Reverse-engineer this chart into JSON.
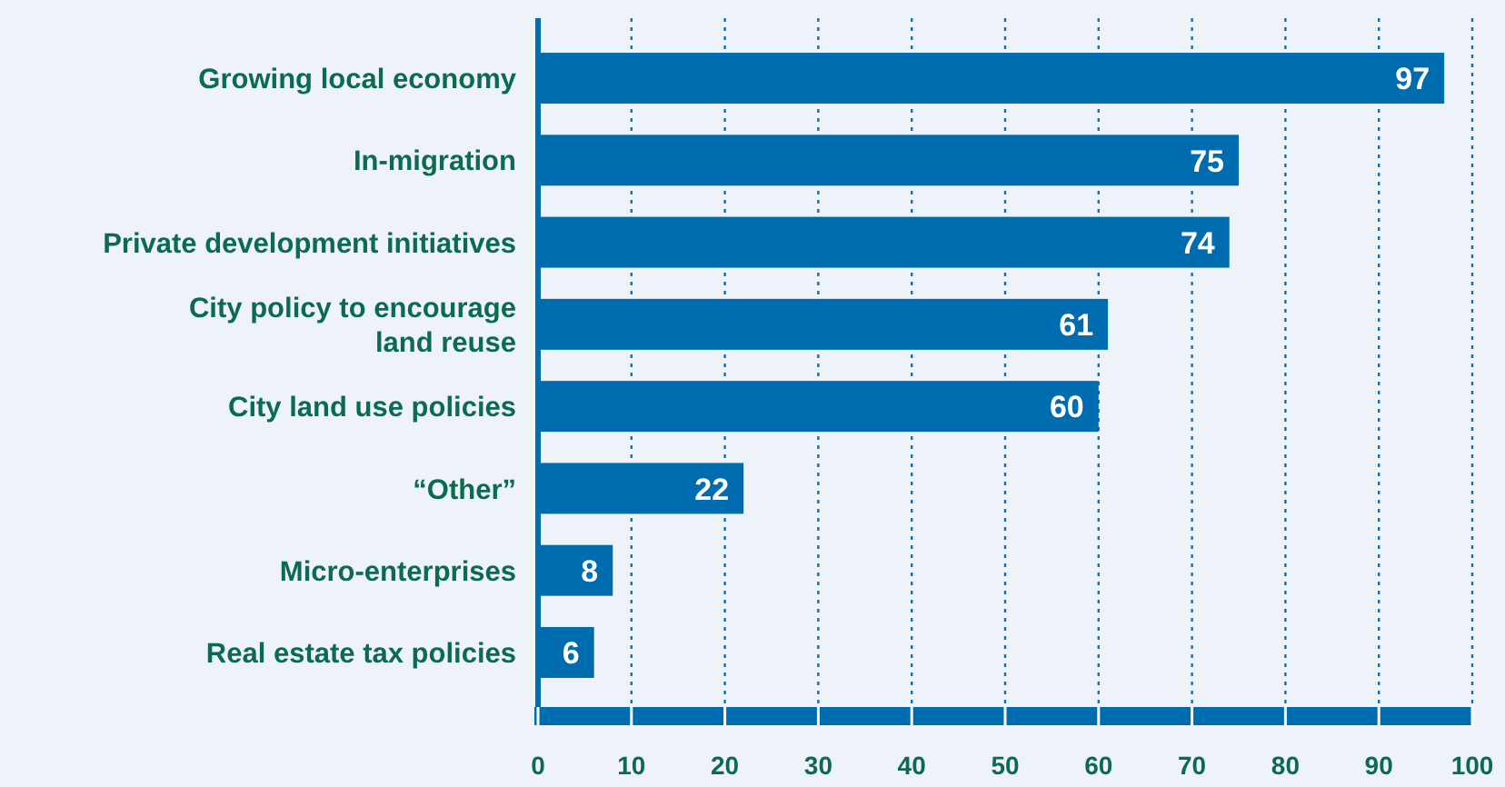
{
  "chart_data": {
    "type": "bar",
    "orientation": "horizontal",
    "categories": [
      "Growing local economy",
      "In-migration",
      "Private development initiatives",
      "City policy to encourage\nland reuse",
      "City land use policies",
      "“Other”",
      "Micro-enterprises",
      "Real estate tax policies"
    ],
    "values": [
      97,
      75,
      74,
      61,
      60,
      22,
      8,
      6
    ],
    "color": "#006cb0",
    "xlim": [
      0,
      100
    ],
    "xticks": [
      0,
      10,
      20,
      30,
      40,
      50,
      60,
      70,
      80,
      90,
      100
    ],
    "grid": "x",
    "data_labels": true
  }
}
